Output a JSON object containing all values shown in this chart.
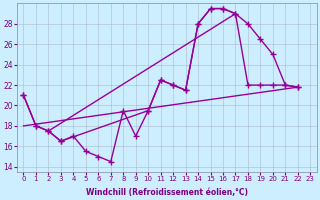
{
  "xlabel": "Windchill (Refroidissement éolien,°C)",
  "background_color": "#cceeff",
  "line_color": "#990099",
  "xlim": [
    -0.5,
    23.5
  ],
  "ylim": [
    13.5,
    30.0
  ],
  "yticks": [
    14,
    16,
    18,
    20,
    22,
    24,
    26,
    28
  ],
  "xticks": [
    0,
    1,
    2,
    3,
    4,
    5,
    6,
    7,
    8,
    9,
    10,
    11,
    12,
    13,
    14,
    15,
    16,
    17,
    18,
    19,
    20,
    21,
    22,
    23
  ],
  "jagged_x": [
    0,
    1,
    2,
    3,
    4,
    5,
    6,
    7,
    8,
    9,
    10,
    11,
    12,
    13,
    14,
    15,
    16,
    17,
    18,
    19,
    20,
    21,
    22
  ],
  "jagged_y": [
    21.0,
    18.0,
    17.5,
    16.5,
    17.0,
    15.5,
    15.0,
    14.5,
    19.5,
    17.0,
    19.5,
    22.5,
    22.0,
    21.5,
    28.0,
    29.5,
    29.5,
    29.0,
    22.0,
    22.0,
    22.0,
    22.0,
    21.8
  ],
  "curve_x": [
    0,
    1,
    2,
    3,
    10,
    11,
    12,
    13,
    14,
    15,
    16,
    17,
    18,
    19,
    20,
    21,
    22
  ],
  "curve_y": [
    21.0,
    18.0,
    17.5,
    16.5,
    19.5,
    22.5,
    22.0,
    21.5,
    28.0,
    29.5,
    29.5,
    29.0,
    28.0,
    26.5,
    25.0,
    22.0,
    21.8
  ],
  "line1_x": [
    0,
    22
  ],
  "line1_y": [
    18.0,
    21.8
  ],
  "line2_x": [
    2,
    17
  ],
  "line2_y": [
    17.5,
    29.0
  ]
}
